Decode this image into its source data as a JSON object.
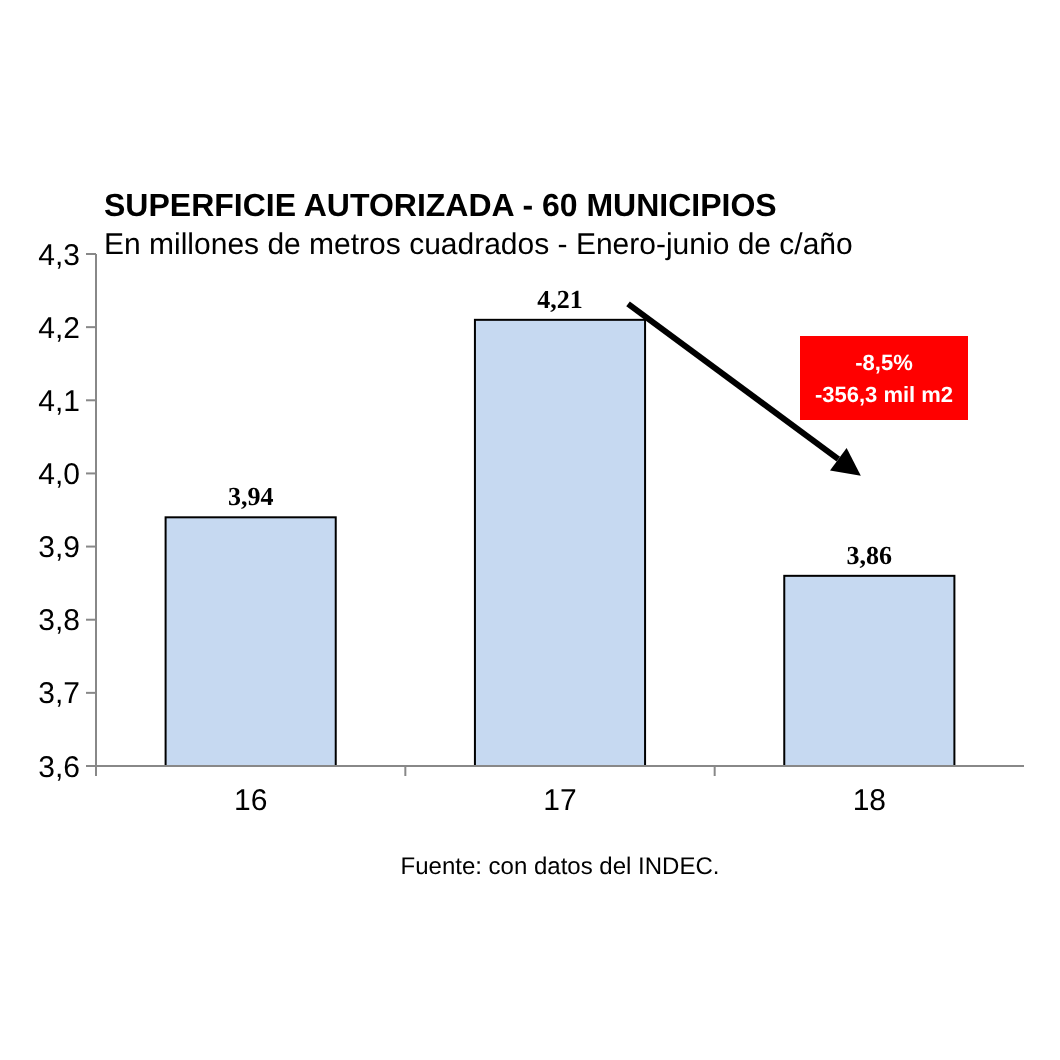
{
  "chart_data": {
    "type": "bar",
    "title": "SUPERFICIE AUTORIZADA - 60 MUNICIPIOS",
    "subtitle": "En millones de metros cuadrados - Enero-junio de c/año",
    "categories": [
      "16",
      "17",
      "18"
    ],
    "values": [
      3.94,
      4.21,
      3.86
    ],
    "value_labels": [
      "3,94",
      "4,21",
      "3,86"
    ],
    "color": "#c6d9f1",
    "ylim": [
      3.6,
      4.3
    ],
    "yticks": [
      {
        "value": 3.6,
        "label": "3,6"
      },
      {
        "value": 3.7,
        "label": "3,7"
      },
      {
        "value": 3.8,
        "label": "3,8"
      },
      {
        "value": 3.9,
        "label": "3,9"
      },
      {
        "value": 4.0,
        "label": "4,0"
      },
      {
        "value": 4.1,
        "label": "4,1"
      },
      {
        "value": 4.2,
        "label": "4,2"
      },
      {
        "value": 4.3,
        "label": "4,3"
      }
    ],
    "grid": false,
    "annotations": [
      "-8,5%\n-356,3 mil m2",
      "Fuente: con datos del INDEC."
    ]
  }
}
